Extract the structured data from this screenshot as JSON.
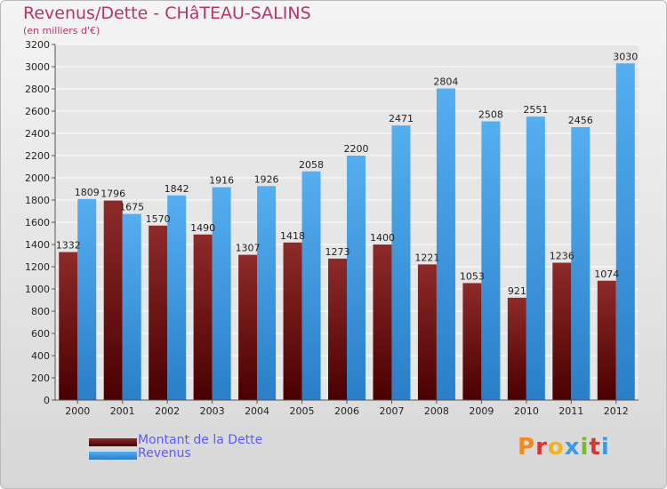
{
  "header": {
    "title": "Revenus/Dette - CHâTEAU-SALINS",
    "subtitle": "(en milliers d'€)"
  },
  "chart_data": {
    "type": "bar",
    "categories": [
      "2000",
      "2001",
      "2002",
      "2003",
      "2004",
      "2005",
      "2006",
      "2007",
      "2008",
      "2009",
      "2010",
      "2011",
      "2012"
    ],
    "series": [
      {
        "name": "Montant de la Dette",
        "color": "#7a1010",
        "values": [
          1332,
          1796,
          1570,
          1490,
          1307,
          1418,
          1273,
          1400,
          1221,
          1053,
          921,
          1236,
          1074
        ],
        "labels": [
          "1332",
          "1796",
          "1570",
          "1490",
          "1307",
          "1418",
          "1273",
          "1400",
          "1221",
          "1053",
          "921",
          "1236",
          "1074"
        ]
      },
      {
        "name": "Revenus",
        "color": "#3a9be0",
        "values": [
          1809,
          1675,
          1842,
          1916,
          1926,
          2058,
          2200,
          2471,
          2804,
          2508,
          2551,
          2456,
          3030
        ],
        "labels": [
          "1809",
          "1675",
          "1842",
          "1916",
          "1926",
          "2058",
          "2200",
          "2471",
          "2804",
          "2508",
          "2551",
          "2456",
          "3030"
        ]
      }
    ],
    "ylim": [
      0,
      3200
    ],
    "yticks": [
      0,
      200,
      400,
      600,
      800,
      1000,
      1200,
      1400,
      1600,
      1800,
      2000,
      2200,
      2400,
      2600,
      2800,
      3000,
      3200
    ],
    "grid": true,
    "legend_position": "bottom-left"
  },
  "legend": {
    "debt_label": "Montant de la Dette",
    "revenue_label": "Revenus"
  },
  "logo": {
    "text": "Proxiti",
    "colors": [
      "#f08a1c",
      "#e0322a",
      "#f0b41c",
      "#3a9be0",
      "#7ab82a",
      "#e0322a",
      "#3a9be0"
    ]
  }
}
